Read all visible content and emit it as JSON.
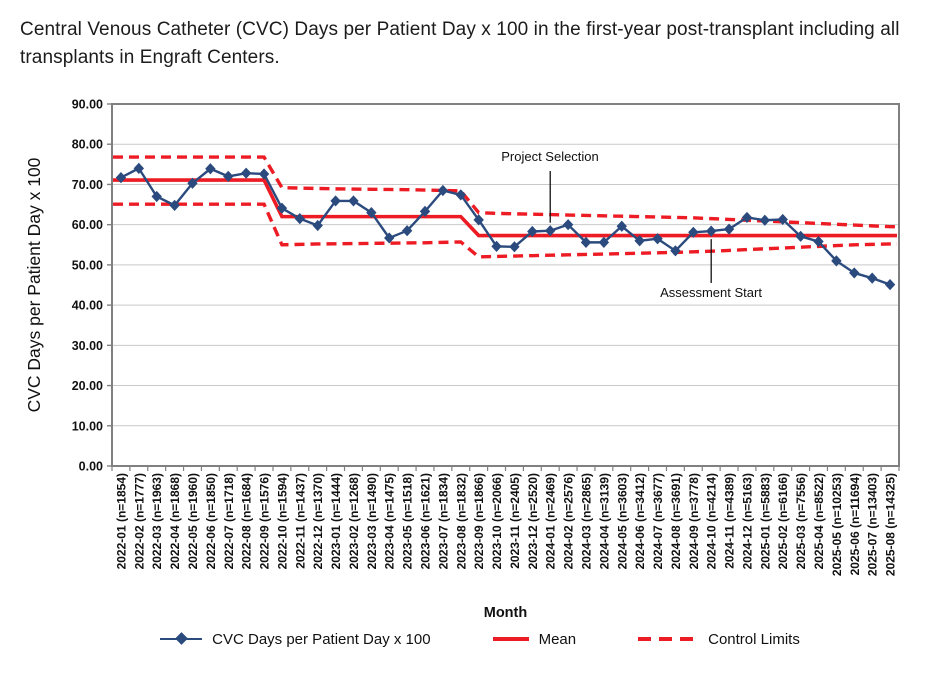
{
  "header": {
    "title": "Central Venous Catheter (CVC) Days per Patient Day x 100 in the first-year post-transplant including all transplants in Engraft Centers."
  },
  "colors": {
    "series_blue": "#2b4a7d",
    "control_red": "#ED1C24",
    "gridline": "#c9c9c9",
    "frame": "#808080",
    "text": "#111111"
  },
  "y_axis": {
    "title": "CVC Days per Patient Day x 100",
    "tick_labels": [
      "90.00",
      "80.00",
      "70.00",
      "60.00",
      "50.00",
      "40.00",
      "30.00",
      "20.00",
      "10.00",
      "0.00"
    ]
  },
  "x_axis": {
    "title": "Month"
  },
  "legend": {
    "series_label": "CVC Days per Patient Day x 100",
    "mean_label": "Mean",
    "limits_label": "Control Limits"
  },
  "annotations": [
    {
      "label": "Project Selection",
      "category": "2024-01 (n=2469)",
      "index": 24,
      "placement": "above"
    },
    {
      "label": "Assessment Start",
      "category": "2024-10 (n=4214)",
      "index": 33,
      "placement": "below"
    }
  ],
  "chart_data": {
    "type": "line",
    "title": "Central Venous Catheter (CVC) Days per Patient Day x 100 in the first-year post-transplant including all transplants in Engraft Centers.",
    "xlabel": "Month",
    "ylabel": "CVC Days per Patient Day x 100",
    "ylim": [
      0,
      90
    ],
    "ytick_step": 10,
    "grid": true,
    "legend_position": "bottom",
    "categories": [
      "2022-01 (n=1854)",
      "2022-02 (n=1777)",
      "2022-03 (n=1963)",
      "2022-04 (n=1868)",
      "2022-05 (n=1960)",
      "2022-06 (n=1850)",
      "2022-07 (n=1718)",
      "2022-08 (n=1684)",
      "2022-09 (n=1576)",
      "2022-10 (n=1594)",
      "2022-11 (n=1437)",
      "2022-12 (n=1370)",
      "2023-01 (n=1444)",
      "2023-02 (n=1268)",
      "2023-03 (n=1490)",
      "2023-04 (n=1475)",
      "2023-05 (n=1518)",
      "2023-06 (n=1621)",
      "2023-07 (n=1834)",
      "2023-08 (n=1832)",
      "2023-09 (n=1866)",
      "2023-10 (n=2066)",
      "2023-11 (n=2405)",
      "2023-12 (n=2520)",
      "2024-01 (n=2469)",
      "2024-02 (n=2576)",
      "2024-03 (n=2865)",
      "2024-04 (n=3139)",
      "2024-05 (n=3603)",
      "2024-06 (n=3412)",
      "2024-07 (n=3677)",
      "2024-08 (n=3691)",
      "2024-09 (n=3778)",
      "2024-10 (n=4214)",
      "2024-11 (n=4389)",
      "2024-12 (n=5163)",
      "2025-01 (n=5883)",
      "2025-02 (n=6166)",
      "2025-03 (n=7556)",
      "2025-04 (n=8522)",
      "2025-05 (n=10253)",
      "2025-06 (n=11694)",
      "2025-07 (n=13403)",
      "2025-08 (n=14325)"
    ],
    "series": [
      {
        "name": "CVC Days per Patient Day x 100",
        "style": "solid-diamond",
        "color": "#2b4a7d",
        "values": [
          71.7,
          74.0,
          67.0,
          64.8,
          70.3,
          73.9,
          72.0,
          72.8,
          72.6,
          64.1,
          61.5,
          59.8,
          65.9,
          65.9,
          63.0,
          56.7,
          58.5,
          63.3,
          68.5,
          67.4,
          61.2,
          54.6,
          54.5,
          58.3,
          58.5,
          60.0,
          55.6,
          55.6,
          59.6,
          56.0,
          56.5,
          53.5,
          58.1,
          58.4,
          58.9,
          61.8,
          61.1,
          61.3,
          57.1,
          55.8,
          51.0,
          48.0,
          46.7,
          45.1
        ]
      },
      {
        "name": "Mean",
        "style": "solid",
        "color": "#ED1C24",
        "values": [
          71.1,
          71.1,
          71.1,
          71.1,
          71.1,
          71.1,
          71.1,
          71.1,
          71.1,
          62.0,
          62.0,
          62.0,
          62.0,
          62.0,
          62.0,
          62.0,
          62.0,
          62.0,
          62.0,
          62.0,
          57.3,
          57.3,
          57.3,
          57.3,
          57.3,
          57.3,
          57.3,
          57.3,
          57.3,
          57.3,
          57.3,
          57.3,
          57.3,
          57.3,
          57.3,
          57.3,
          57.3,
          57.3,
          57.3,
          57.3,
          57.3,
          57.3,
          57.3,
          57.3
        ]
      },
      {
        "name": "Upper Control Limit",
        "style": "dashed",
        "color": "#ED1C24",
        "values": [
          76.8,
          76.8,
          76.8,
          76.8,
          76.8,
          76.8,
          76.8,
          76.8,
          76.8,
          69.2,
          69.1,
          69.0,
          68.9,
          68.85,
          68.8,
          68.75,
          68.7,
          68.6,
          68.5,
          68.4,
          63.0,
          62.8,
          62.7,
          62.6,
          62.5,
          62.4,
          62.3,
          62.2,
          62.1,
          62.0,
          61.9,
          61.8,
          61.7,
          61.5,
          61.3,
          61.1,
          60.9,
          60.7,
          60.5,
          60.3,
          60.1,
          59.9,
          59.7,
          59.5
        ]
      },
      {
        "name": "Lower Control Limit",
        "style": "dashed",
        "color": "#ED1C24",
        "values": [
          65.1,
          65.1,
          65.1,
          65.1,
          65.1,
          65.1,
          65.1,
          65.1,
          65.1,
          55.0,
          55.1,
          55.2,
          55.25,
          55.3,
          55.35,
          55.4,
          55.45,
          55.5,
          55.6,
          55.7,
          52.0,
          52.1,
          52.2,
          52.3,
          52.4,
          52.5,
          52.6,
          52.7,
          52.8,
          52.9,
          53.0,
          53.1,
          53.25,
          53.4,
          53.6,
          53.8,
          54.0,
          54.2,
          54.4,
          54.6,
          54.8,
          55.0,
          55.1,
          55.2
        ]
      }
    ]
  }
}
